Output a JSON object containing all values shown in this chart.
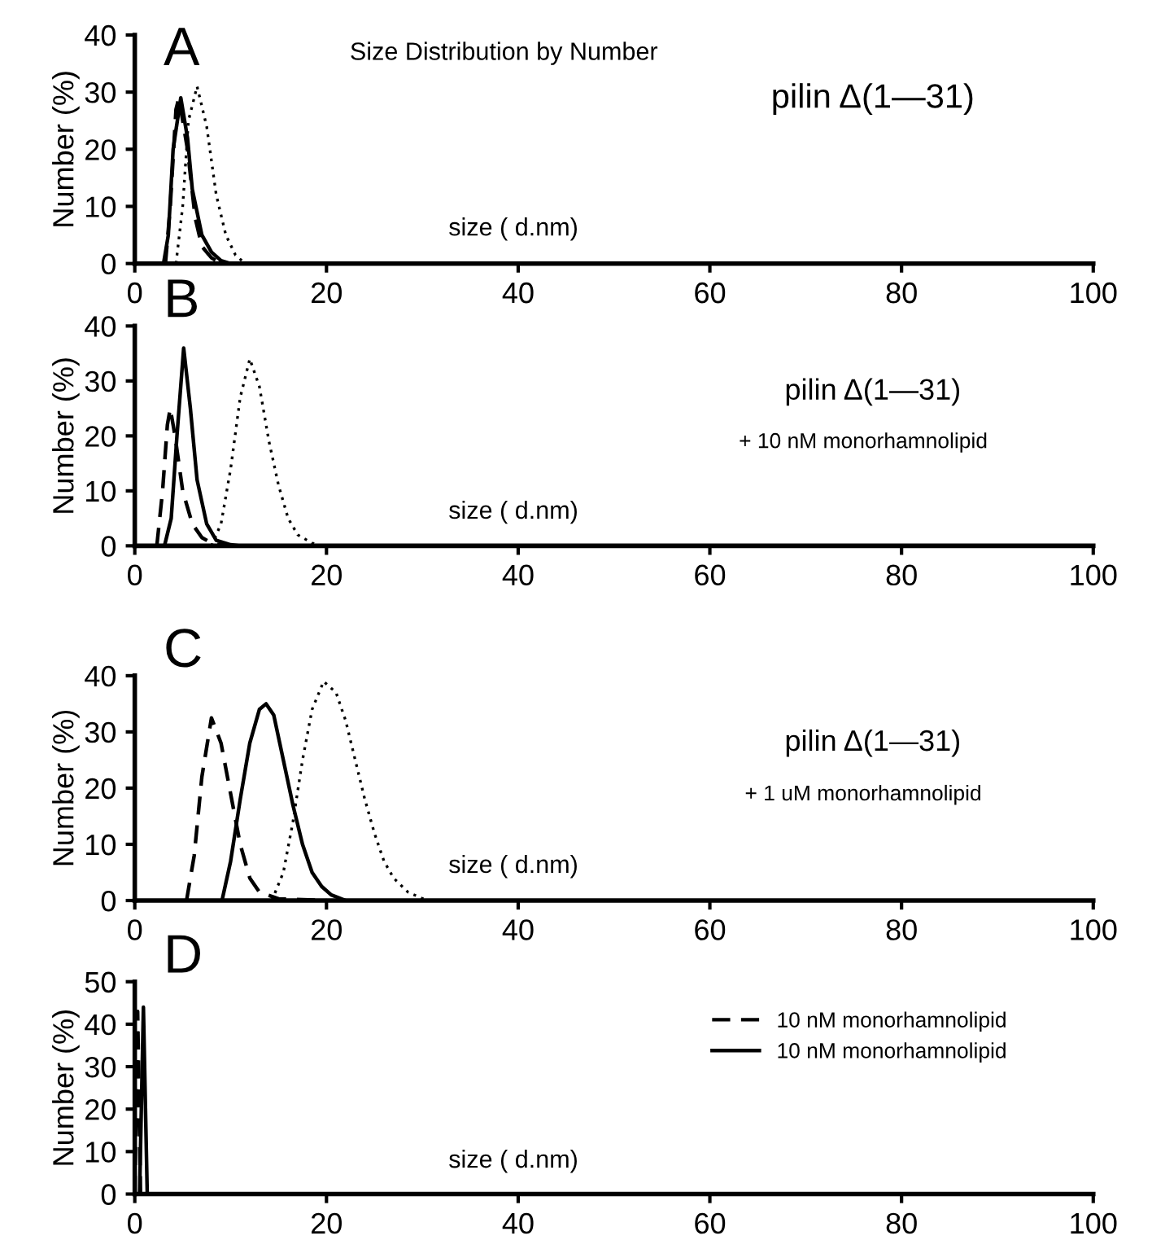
{
  "chart_data": [
    {
      "type": "line",
      "title": "Size Distribution by Number",
      "ylabel": "Number (%)",
      "annotations": [
        "A",
        "pilin Δ(1—31)",
        "size ( d.nm)"
      ],
      "xlim": [
        0,
        100
      ],
      "xticks": [
        0,
        20,
        40,
        60,
        80,
        100
      ],
      "ylim": [
        0,
        40
      ],
      "yticks": [
        0,
        10,
        20,
        30,
        40
      ],
      "grid": false,
      "legend": false,
      "series": [
        {
          "color": "#000000",
          "line_style": "dashed",
          "x": [
            3.2,
            3.7,
            4.3,
            4.6,
            5.5,
            6.3,
            7,
            8,
            9
          ],
          "values": [
            0,
            10,
            27,
            29,
            20,
            8,
            3,
            1,
            0
          ]
        },
        {
          "color": "#000000",
          "line_style": "solid",
          "x": [
            3,
            3.5,
            4,
            4.8,
            5.5,
            6,
            7,
            8,
            9,
            10
          ],
          "values": [
            0,
            5,
            20,
            29,
            22,
            13,
            5,
            2,
            0.5,
            0
          ]
        },
        {
          "color": "#000000",
          "line_style": "dotted",
          "x": [
            4.3,
            5,
            5.6,
            6.5,
            7.5,
            8.5,
            9.5,
            10.5,
            11.5
          ],
          "values": [
            0,
            10,
            25,
            31,
            24,
            12,
            5,
            1.5,
            0
          ]
        }
      ]
    },
    {
      "type": "line",
      "ylabel": "Number (%)",
      "annotations": [
        "B",
        "pilin Δ(1—31)",
        "+ 10 nM monorhamnolipid",
        "size ( d.nm)"
      ],
      "xlim": [
        0,
        100
      ],
      "xticks": [
        0,
        20,
        40,
        60,
        80,
        100
      ],
      "ylim": [
        0,
        40
      ],
      "yticks": [
        0,
        10,
        20,
        30,
        40
      ],
      "grid": false,
      "legend": false,
      "series": [
        {
          "color": "#000000",
          "line_style": "dashed",
          "x": [
            2.3,
            2.9,
            3.4,
            3.7,
            4.2,
            5,
            6,
            7,
            8,
            9.5
          ],
          "values": [
            0,
            10,
            22,
            25,
            20,
            10,
            4,
            1.5,
            0.5,
            0
          ]
        },
        {
          "color": "#000000",
          "line_style": "solid",
          "x": [
            3.1,
            3.8,
            4.4,
            5.1,
            5.8,
            6.5,
            7.5,
            8.5,
            10,
            11
          ],
          "values": [
            0,
            5,
            20,
            36,
            25,
            12,
            4,
            1,
            0.2,
            0
          ]
        },
        {
          "color": "#000000",
          "line_style": "dotted",
          "x": [
            8,
            9,
            10,
            11,
            12,
            13,
            14,
            15,
            16,
            17,
            18.5,
            19.5
          ],
          "values": [
            0,
            4,
            14,
            27,
            34,
            29,
            19,
            11,
            5,
            2,
            0.5,
            0
          ]
        }
      ]
    },
    {
      "type": "line",
      "ylabel": "Number (%)",
      "annotations": [
        "C",
        "pilin Δ(1—31)",
        "+ 1 uM monorhamnolipid",
        "size ( d.nm)"
      ],
      "xlim": [
        0,
        100
      ],
      "xticks": [
        0,
        20,
        40,
        60,
        80,
        100
      ],
      "ylim": [
        0,
        40
      ],
      "yticks": [
        0,
        10,
        20,
        30,
        40
      ],
      "grid": false,
      "legend": false,
      "series": [
        {
          "color": "#000000",
          "line_style": "dashed",
          "x": [
            5.4,
            6.2,
            7,
            8,
            9,
            10,
            11,
            12,
            13,
            15,
            20
          ],
          "values": [
            0,
            8,
            22,
            32.5,
            28,
            19,
            10,
            4,
            1.5,
            0.3,
            0
          ]
        },
        {
          "color": "#000000",
          "line_style": "solid",
          "x": [
            9.1,
            10,
            11,
            12,
            13,
            13.7,
            14.5,
            15.5,
            16.5,
            17.5,
            18.5,
            19.5,
            20.5,
            22
          ],
          "values": [
            0,
            7,
            18,
            28,
            34,
            35,
            33,
            25,
            17,
            10,
            5,
            2.5,
            1,
            0
          ]
        },
        {
          "color": "#000000",
          "line_style": "dotted",
          "x": [
            14.3,
            15.5,
            16.5,
            17.5,
            18.5,
            19.7,
            21,
            22,
            23,
            24,
            25,
            26,
            27,
            28.5,
            30.5
          ],
          "values": [
            0,
            5,
            14,
            25,
            34,
            39,
            37,
            32,
            25,
            18,
            12,
            7,
            4,
            1.5,
            0
          ]
        }
      ]
    },
    {
      "type": "line",
      "ylabel": "Number (%)",
      "annotations": [
        "D",
        "size ( d.nm)"
      ],
      "xlim": [
        0,
        100
      ],
      "xticks": [
        0,
        20,
        40,
        60,
        80,
        100
      ],
      "ylim": [
        0,
        50
      ],
      "yticks": [
        0,
        10,
        20,
        30,
        40,
        50
      ],
      "grid": false,
      "legend": "top right",
      "series": [
        {
          "name": "10 nM monorhamnolipid",
          "color": "#000000",
          "line_style": "dashed",
          "x": [
            0,
            0.3,
            0.6
          ],
          "values": [
            0,
            43,
            0
          ]
        },
        {
          "name": "10 nM monorhamnolipid",
          "color": "#000000",
          "line_style": "solid",
          "x": [
            0.5,
            0.9,
            1.3
          ],
          "values": [
            0,
            44,
            0
          ]
        }
      ]
    }
  ]
}
